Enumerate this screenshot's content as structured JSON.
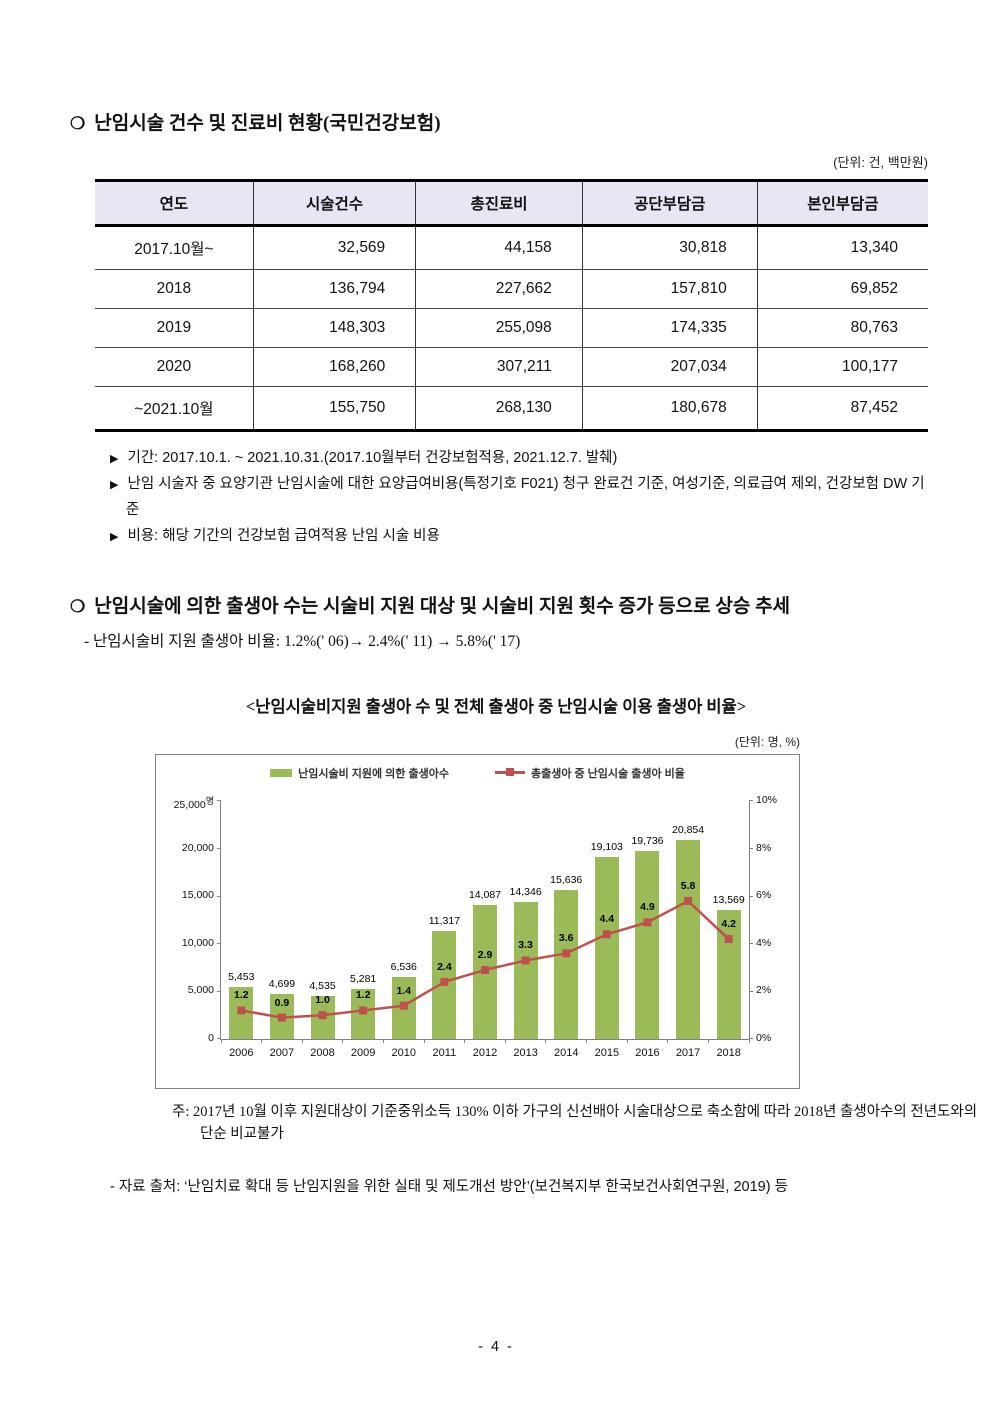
{
  "section1": {
    "bullet": "❍",
    "title": "난임시술 건수 및 진료비 현황(국민건강보험)",
    "unit_note": "(단위: 건, 백만원)",
    "table": {
      "headers": [
        "연도",
        "시술건수",
        "총진료비",
        "공단부담금",
        "본인부담금"
      ],
      "rows": [
        [
          "2017.10월~",
          "32,569",
          "44,158",
          "30,818",
          "13,340"
        ],
        [
          "2018",
          "136,794",
          "227,662",
          "157,810",
          "69,852"
        ],
        [
          "2019",
          "148,303",
          "255,098",
          "174,335",
          "80,763"
        ],
        [
          "2020",
          "168,260",
          "307,211",
          "207,034",
          "100,177"
        ],
        [
          "~2021.10월",
          "155,750",
          "268,130",
          "180,678",
          "87,452"
        ]
      ]
    },
    "notes": [
      {
        "marker": "▶",
        "text": "기간: 2017.10.1. ~ 2021.10.31.(2017.10월부터 건강보험적용, 2021.12.7. 발췌)"
      },
      {
        "marker": "▶",
        "text": "난임 시술자 중 요양기관 난임시술에 대한 요양급여비용(특정기호 F021) 청구 완료건 기준, 여성기준, 의료급여 제외, 건강보험 DW 기준"
      },
      {
        "marker": "▶",
        "text": "비용: 해당 기간의 건강보험 급여적용 난임 시술 비용"
      }
    ]
  },
  "section2": {
    "bullet": "❍",
    "title": "난임시술에 의한 출생아 수는 시술비 지원 대상 및 시술비 지원 횟수 증가 등으로 상승 추세",
    "subnote": "- 난임시술비 지원 출생아 비율: 1.2%(' 06)→ 2.4%(' 11) → 5.8%(' 17)"
  },
  "figure": {
    "title": "<난임시술비지원 출생아 수 및 전체 출생아 중 난임시술 이용 출생아 비율>",
    "unit_note": "(단위: 명, %)",
    "note": "주: 2017년 10월 이후 지원대상이 기준중위소득 130% 이하 가구의 신선배아 시술대상으로 축소함에 따라 2018년 출생아수의 전년도와의 단순 비교불가",
    "source": "- 자료 출처: ‘난임치료 확대 등 난임지원을 위한 실태 및 제도개선 방안’(보건복지부 한국보건사회연구원, 2019) 등"
  },
  "chart_data": {
    "type": "bar+line",
    "categories": [
      "2006",
      "2007",
      "2008",
      "2009",
      "2010",
      "2011",
      "2012",
      "2013",
      "2014",
      "2015",
      "2016",
      "2017",
      "2018"
    ],
    "series": [
      {
        "name": "난임시술비 지원에 의한 출생아수",
        "type": "bar",
        "color": "#9bbb59",
        "values": [
          5453,
          4699,
          4535,
          5281,
          6536,
          11317,
          14087,
          14346,
          15636,
          19103,
          19736,
          20854,
          13569
        ],
        "labels": [
          "5,453",
          "4,699",
          "4,535",
          "5,281",
          "6,536",
          "11,317",
          "14,087",
          "14,346",
          "15,636",
          "19,103",
          "19,736",
          "20,854",
          "13,569"
        ]
      },
      {
        "name": "총출생아 중 난임시술 출생아 비율",
        "type": "line",
        "color": "#c0504d",
        "values": [
          1.2,
          0.9,
          1.0,
          1.2,
          1.4,
          2.4,
          2.9,
          3.3,
          3.6,
          4.4,
          4.9,
          5.8,
          4.2
        ],
        "labels": [
          "1.2",
          "0.9",
          "1.0",
          "1.2",
          "1.4",
          "2.4",
          "2.9",
          "3.3",
          "3.6",
          "4.4",
          "4.9",
          "5.8",
          "4.2"
        ]
      }
    ],
    "left_axis": {
      "unit": "명",
      "ticks": [
        "0",
        "5,000",
        "10,000",
        "15,000",
        "20,000",
        "25,000"
      ],
      "min": 0,
      "max": 25000
    },
    "right_axis": {
      "ticks": [
        "0%",
        "2%",
        "4%",
        "6%",
        "8%",
        "10%"
      ],
      "min": 0,
      "max": 10
    },
    "legend_position": "top",
    "grid": false
  },
  "page": {
    "number_label": "- 4 -"
  }
}
